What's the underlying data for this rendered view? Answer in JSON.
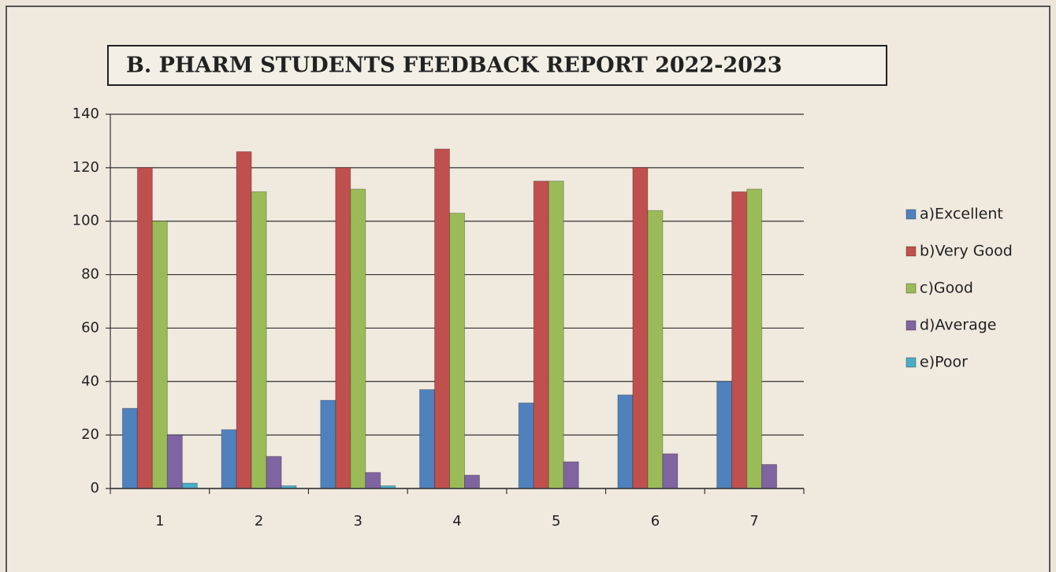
{
  "chart_data": {
    "type": "bar",
    "title": "B. PHARM STUDENTS FEEDBACK REPORT 2022-2023",
    "categories": [
      "1",
      "2",
      "3",
      "4",
      "5",
      "6",
      "7"
    ],
    "series": [
      {
        "name": "a)Excellent",
        "color": "#4f81bd",
        "values": [
          30,
          22,
          33,
          37,
          32,
          35,
          40
        ]
      },
      {
        "name": "b)Very Good",
        "color": "#c0504d",
        "values": [
          120,
          126,
          120,
          127,
          115,
          120,
          111
        ]
      },
      {
        "name": "c)Good",
        "color": "#9bbb59",
        "values": [
          100,
          111,
          112,
          103,
          115,
          104,
          112
        ]
      },
      {
        "name": "d)Average",
        "color": "#8064a2",
        "values": [
          20,
          12,
          6,
          5,
          10,
          13,
          9
        ]
      },
      {
        "name": "e)Poor",
        "color": "#4bacc6",
        "values": [
          2,
          1,
          1,
          0,
          0,
          0,
          0
        ]
      }
    ],
    "ylim": [
      0,
      140
    ],
    "yticks": [
      0,
      20,
      40,
      60,
      80,
      100,
      120,
      140
    ],
    "grid": true,
    "legend": "right"
  }
}
